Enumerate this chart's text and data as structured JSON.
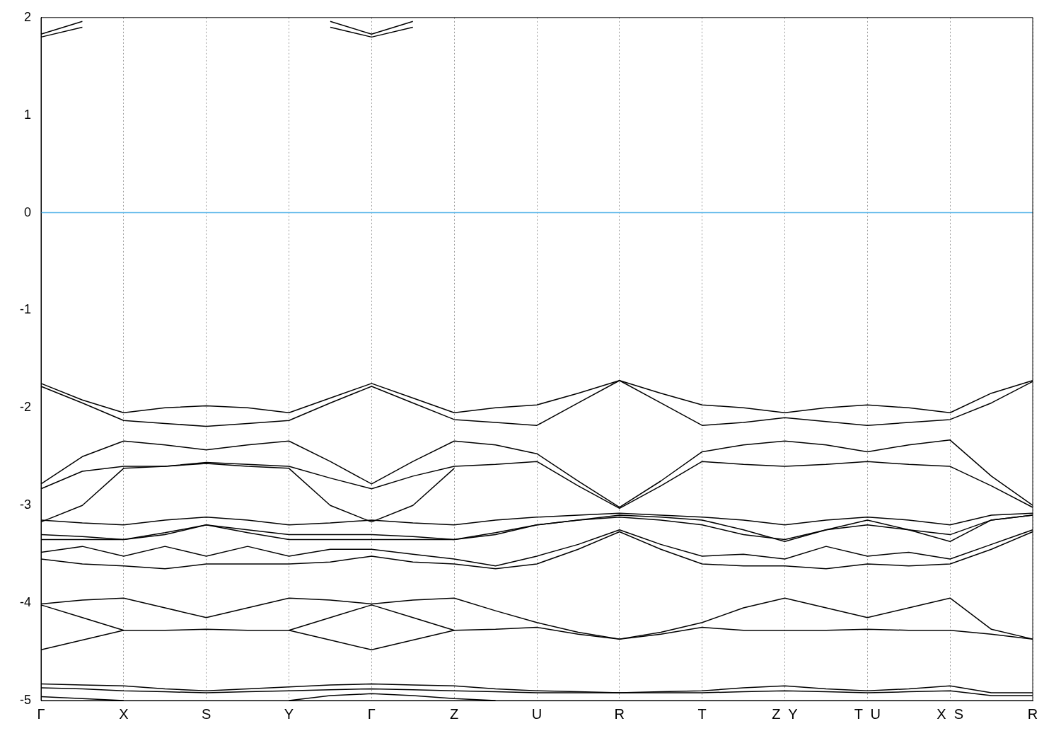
{
  "chart_data": {
    "type": "line",
    "categories": [
      "Γ",
      null,
      "X",
      null,
      "S",
      null,
      "Y",
      null,
      "Γ",
      null,
      "Z",
      null,
      "U",
      null,
      "R",
      null,
      "T",
      null,
      "Z  Y",
      null,
      "T  U",
      null,
      "X  S",
      null,
      "R"
    ],
    "ylim": [
      -5,
      2
    ],
    "yticks": [
      -5,
      -4,
      -3,
      -2,
      -1,
      0,
      1,
      2
    ],
    "grid": "x",
    "ref_lines": [
      {
        "axis": "y",
        "value": 0,
        "color": "#56b4e9"
      }
    ],
    "series": [
      {
        "color": "#000000",
        "values": [
          -1.75,
          -1.92,
          -2.05,
          -2.0,
          -1.98,
          -2.0,
          -2.05,
          -1.9,
          -1.75,
          -1.9,
          -2.05,
          -2.0,
          -1.97,
          -1.85,
          -1.72,
          -1.85,
          -1.97,
          -2.0,
          -2.05,
          -2.0,
          -1.97,
          -2.0,
          -2.05,
          -1.85,
          -1.72
        ]
      },
      {
        "color": "#000000",
        "values": [
          -1.78,
          -1.95,
          -2.13,
          -2.16,
          -2.19,
          -2.16,
          -2.13,
          -1.95,
          -1.78,
          -1.95,
          -2.12,
          -2.15,
          -2.18,
          -1.95,
          -1.72,
          -1.95,
          -2.18,
          -2.15,
          -2.1,
          -2.14,
          -2.18,
          -2.15,
          -2.12,
          -1.95,
          -1.73
        ]
      },
      {
        "color": "#000000",
        "values": [
          -2.78,
          -2.5,
          -2.34,
          -2.38,
          -2.43,
          -2.38,
          -2.34,
          -2.55,
          -2.78,
          -2.55,
          -2.34,
          -2.38,
          -2.47,
          -2.75,
          -3.02,
          -2.75,
          -2.45,
          -2.38,
          -2.34,
          -2.38,
          -2.45,
          -2.38,
          -2.33,
          -2.7,
          -3.0
        ]
      },
      {
        "color": "#000000",
        "values": [
          -2.83,
          -2.65,
          -2.6,
          -2.6,
          -2.56,
          -2.58,
          -2.6,
          -2.72,
          -2.83,
          -2.7,
          -2.6,
          -2.58,
          -2.55,
          -2.8,
          -3.03,
          -2.8,
          -2.55,
          -2.58,
          -2.6,
          -2.58,
          -2.55,
          -2.58,
          -2.6,
          -2.8,
          -3.02
        ]
      },
      {
        "color": "#000000",
        "values": [
          -3.17,
          -3.0,
          -2.62,
          -2.6,
          -2.57,
          -2.6,
          -2.62,
          -3.0,
          -3.17,
          -3.0,
          -2.62,
          null,
          null,
          null,
          null,
          null,
          null,
          null,
          null,
          null,
          null,
          null,
          null,
          null,
          null
        ]
      },
      {
        "color": "#000000",
        "values": [
          -3.15,
          -3.18,
          -3.2,
          -3.15,
          -3.12,
          -3.15,
          -3.2,
          -3.18,
          -3.15,
          -3.18,
          -3.2,
          -3.15,
          -3.12,
          -3.1,
          -3.08,
          -3.1,
          -3.12,
          -3.15,
          -3.2,
          -3.15,
          -3.12,
          -3.15,
          -3.2,
          -3.1,
          -3.08
        ]
      },
      {
        "color": "#000000",
        "values": [
          -3.3,
          -3.32,
          -3.35,
          -3.28,
          -3.2,
          -3.25,
          -3.3,
          -3.3,
          -3.3,
          -3.32,
          -3.35,
          -3.28,
          -3.2,
          -3.15,
          -3.1,
          -3.12,
          -3.15,
          -3.25,
          -3.37,
          -3.25,
          -3.15,
          -3.25,
          -3.37,
          -3.15,
          -3.1
        ]
      },
      {
        "color": "#000000",
        "values": [
          -3.35,
          -3.35,
          -3.35,
          -3.3,
          -3.2,
          -3.28,
          -3.35,
          -3.35,
          -3.35,
          -3.35,
          -3.35,
          -3.3,
          -3.2,
          -3.15,
          -3.12,
          -3.15,
          -3.2,
          -3.3,
          -3.35,
          -3.25,
          -3.2,
          -3.25,
          -3.3,
          -3.15,
          -3.1
        ]
      },
      {
        "color": "#000000",
        "values": [
          -3.48,
          -3.42,
          -3.52,
          -3.42,
          -3.52,
          -3.42,
          -3.52,
          -3.45,
          -3.45,
          -3.5,
          -3.55,
          -3.62,
          -3.52,
          -3.4,
          -3.25,
          -3.4,
          -3.52,
          -3.5,
          -3.55,
          -3.42,
          -3.52,
          -3.48,
          -3.55,
          -3.4,
          -3.25
        ]
      },
      {
        "color": "#000000",
        "values": [
          -3.55,
          -3.6,
          -3.62,
          -3.65,
          -3.6,
          -3.6,
          -3.6,
          -3.58,
          -3.52,
          -3.58,
          -3.6,
          -3.65,
          -3.6,
          -3.45,
          -3.27,
          -3.45,
          -3.6,
          -3.62,
          -3.62,
          -3.65,
          -3.6,
          -3.62,
          -3.6,
          -3.45,
          -3.27
        ]
      },
      {
        "color": "#000000",
        "values": [
          -4.01,
          -3.97,
          -3.95,
          -4.05,
          -4.15,
          -4.05,
          -3.95,
          -3.97,
          -4.01,
          -3.97,
          -3.95,
          -4.08,
          -4.2,
          -4.3,
          -4.37,
          -4.3,
          -4.2,
          -4.05,
          -3.95,
          -4.05,
          -4.15,
          -4.05,
          -3.95,
          -4.27,
          -4.37
        ]
      },
      {
        "color": "#000000",
        "values": [
          -4.02,
          -4.15,
          -4.28,
          -4.28,
          -4.27,
          -4.28,
          -4.28,
          -4.15,
          -4.02,
          -4.15,
          -4.28,
          -4.27,
          -4.25,
          -4.32,
          -4.37,
          -4.32,
          -4.25,
          -4.28,
          -4.28,
          -4.28,
          -4.27,
          -4.28,
          -4.28,
          -4.32,
          -4.37
        ]
      },
      {
        "color": "#000000",
        "values": [
          -4.48,
          -4.38,
          -4.28,
          null,
          null,
          null,
          -4.28,
          -4.38,
          -4.48,
          -4.38,
          -4.28,
          null,
          null,
          null,
          null,
          null,
          null,
          null,
          null,
          null,
          null,
          null,
          null,
          null,
          null
        ]
      },
      {
        "color": "#000000",
        "values": [
          -4.83,
          -4.84,
          -4.85,
          -4.88,
          -4.9,
          -4.88,
          -4.86,
          -4.84,
          -4.83,
          -4.84,
          -4.85,
          -4.88,
          -4.9,
          -4.91,
          -4.92,
          -4.91,
          -4.9,
          -4.87,
          -4.85,
          -4.88,
          -4.9,
          -4.88,
          -4.85,
          -4.92,
          -4.92
        ]
      },
      {
        "color": "#000000",
        "values": [
          -4.87,
          -4.88,
          -4.9,
          -4.91,
          -4.92,
          -4.91,
          -4.9,
          -4.89,
          -4.88,
          -4.89,
          -4.9,
          -4.91,
          -4.92,
          -4.92,
          -4.92,
          -4.92,
          -4.92,
          -4.91,
          -4.9,
          -4.91,
          -4.92,
          -4.91,
          -4.9,
          -4.95,
          -4.95
        ]
      },
      {
        "color": "#000000",
        "values": [
          -4.96,
          -4.98,
          -5.0,
          null,
          null,
          null,
          -5.0,
          -4.95,
          -4.93,
          -4.95,
          -4.98,
          -5.0,
          null,
          null,
          null,
          null,
          null,
          null,
          null,
          null,
          null,
          null,
          null,
          null,
          null
        ]
      },
      {
        "color": "#000000",
        "values": [
          1.8,
          1.9,
          null,
          null,
          null,
          null,
          null,
          1.9,
          1.8,
          1.9,
          null,
          null,
          null,
          null,
          null,
          null,
          null,
          null,
          null,
          null,
          null,
          null,
          null,
          null,
          null
        ]
      },
      {
        "color": "#000000",
        "values": [
          1.83,
          1.96,
          null,
          null,
          null,
          null,
          null,
          1.96,
          1.83,
          1.96,
          null,
          null,
          null,
          null,
          null,
          null,
          null,
          null,
          null,
          null,
          null,
          null,
          null,
          null,
          null
        ]
      }
    ]
  }
}
